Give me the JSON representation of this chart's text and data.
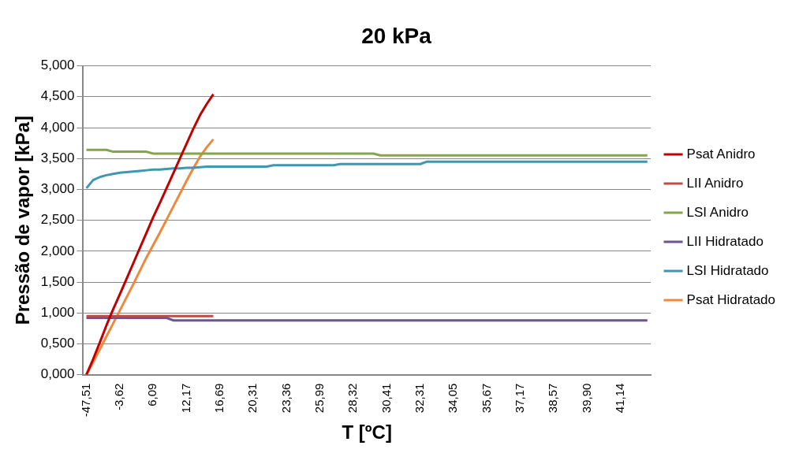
{
  "chart_data": {
    "type": "line",
    "title": "20 kPa",
    "xlabel": "T [ºC]",
    "ylabel": "Pressão de vapor [kPa]",
    "categories": [
      "-47,51",
      null,
      null,
      null,
      null,
      "-3,62",
      null,
      null,
      null,
      null,
      "6,09",
      null,
      null,
      null,
      null,
      "12,17",
      null,
      null,
      null,
      null,
      "16,69",
      null,
      null,
      null,
      null,
      "20,31",
      null,
      null,
      null,
      null,
      "23,36",
      null,
      null,
      null,
      null,
      "25,99",
      null,
      null,
      null,
      null,
      "28,32",
      null,
      null,
      null,
      null,
      "30,41",
      null,
      null,
      null,
      null,
      "32,31",
      null,
      null,
      null,
      null,
      "34,05",
      null,
      null,
      null,
      null,
      "35,67",
      null,
      null,
      null,
      null,
      "37,17",
      null,
      null,
      null,
      null,
      "38,57",
      null,
      null,
      null,
      null,
      "39,90",
      null,
      null,
      null,
      null,
      "41,14",
      null,
      null,
      null,
      null
    ],
    "ylim": [
      0,
      5
    ],
    "yticks": [
      {
        "value": 0,
        "label": "0,000"
      },
      {
        "value": 0.5,
        "label": "0,500"
      },
      {
        "value": 1,
        "label": "1,000"
      },
      {
        "value": 1.5,
        "label": "1,500"
      },
      {
        "value": 2,
        "label": "2,000"
      },
      {
        "value": 2.5,
        "label": "2,500"
      },
      {
        "value": 3,
        "label": "3,000"
      },
      {
        "value": 3.5,
        "label": "3,500"
      },
      {
        "value": 4,
        "label": "4,000"
      },
      {
        "value": 4.5,
        "label": "4,500"
      },
      {
        "value": 5,
        "label": "5,000"
      }
    ],
    "grid": "y",
    "legend": "right",
    "marker": "none",
    "line_style": "solid",
    "series": [
      {
        "name": "Psat Anidro",
        "color": "#c00000",
        "values": [
          0,
          0.25,
          0.52,
          0.8,
          1.06,
          1.3,
          1.55,
          1.8,
          2.05,
          2.3,
          2.55,
          2.78,
          3.02,
          3.26,
          3.5,
          3.74,
          3.98,
          4.2,
          4.38,
          4.54,
          null,
          null,
          null,
          null,
          null,
          null,
          null,
          null,
          null,
          null,
          null,
          null,
          null,
          null,
          null,
          null,
          null,
          null,
          null,
          null,
          null,
          null,
          null,
          null,
          null,
          null,
          null,
          null,
          null,
          null,
          null,
          null,
          null,
          null,
          null,
          null,
          null,
          null,
          null,
          null,
          null,
          null,
          null,
          null,
          null,
          null,
          null,
          null,
          null,
          null,
          null,
          null,
          null,
          null,
          null,
          null,
          null,
          null,
          null,
          null,
          null,
          null,
          null,
          null,
          null
        ]
      },
      {
        "name": "LII Anidro",
        "color": "#be4b48",
        "values": [
          0.95,
          0.95,
          0.95,
          0.95,
          0.95,
          0.95,
          0.95,
          0.95,
          0.95,
          0.95,
          0.95,
          0.95,
          0.95,
          0.95,
          0.95,
          0.95,
          0.95,
          0.95,
          0.95,
          0.95,
          null,
          null,
          null,
          null,
          null,
          null,
          null,
          null,
          null,
          null,
          null,
          null,
          null,
          null,
          null,
          null,
          null,
          null,
          null,
          null,
          null,
          null,
          null,
          null,
          null,
          null,
          null,
          null,
          null,
          null,
          null,
          null,
          null,
          null,
          null,
          null,
          null,
          null,
          null,
          null,
          null,
          null,
          null,
          null,
          null,
          null,
          null,
          null,
          null,
          null,
          null,
          null,
          null,
          null,
          null,
          null,
          null,
          null,
          null,
          null,
          null,
          null,
          null,
          null,
          null
        ]
      },
      {
        "name": "LSI Anidro",
        "color": "#86a44a",
        "values": [
          3.64,
          3.64,
          3.64,
          3.64,
          3.61,
          3.61,
          3.61,
          3.61,
          3.61,
          3.61,
          3.58,
          3.58,
          3.58,
          3.58,
          3.58,
          3.58,
          3.58,
          3.58,
          3.58,
          3.58,
          3.58,
          3.58,
          3.58,
          3.58,
          3.58,
          3.58,
          3.58,
          3.58,
          3.58,
          3.58,
          3.58,
          3.58,
          3.58,
          3.58,
          3.58,
          3.58,
          3.58,
          3.58,
          3.58,
          3.58,
          3.58,
          3.58,
          3.58,
          3.58,
          3.55,
          3.55,
          3.55,
          3.55,
          3.55,
          3.55,
          3.55,
          3.55,
          3.55,
          3.55,
          3.55,
          3.55,
          3.55,
          3.55,
          3.55,
          3.55,
          3.55,
          3.55,
          3.55,
          3.55,
          3.55,
          3.55,
          3.55,
          3.55,
          3.55,
          3.55,
          3.55,
          3.55,
          3.55,
          3.55,
          3.55,
          3.55,
          3.55,
          3.55,
          3.55,
          3.55,
          3.55,
          3.55,
          3.55,
          3.55,
          3.55
        ]
      },
      {
        "name": "LII Hidratado",
        "color": "#6d5391",
        "values": [
          0.92,
          0.92,
          0.92,
          0.92,
          0.92,
          0.92,
          0.92,
          0.92,
          0.92,
          0.92,
          0.92,
          0.92,
          0.92,
          0.88,
          0.88,
          0.88,
          0.88,
          0.88,
          0.88,
          0.88,
          0.88,
          0.88,
          0.88,
          0.88,
          0.88,
          0.88,
          0.88,
          0.88,
          0.88,
          0.88,
          0.88,
          0.88,
          0.88,
          0.88,
          0.88,
          0.88,
          0.88,
          0.88,
          0.88,
          0.88,
          0.88,
          0.88,
          0.88,
          0.88,
          0.88,
          0.88,
          0.88,
          0.88,
          0.88,
          0.88,
          0.88,
          0.88,
          0.88,
          0.88,
          0.88,
          0.88,
          0.88,
          0.88,
          0.88,
          0.88,
          0.88,
          0.88,
          0.88,
          0.88,
          0.88,
          0.88,
          0.88,
          0.88,
          0.88,
          0.88,
          0.88,
          0.88,
          0.88,
          0.88,
          0.88,
          0.88,
          0.88,
          0.88,
          0.88,
          0.88,
          0.88,
          0.88,
          0.88,
          0.88,
          0.88
        ]
      },
      {
        "name": "LSI Hidratado",
        "color": "#3f97b0",
        "values": [
          3.02,
          3.15,
          3.2,
          3.23,
          3.25,
          3.27,
          3.28,
          3.29,
          3.3,
          3.31,
          3.32,
          3.32,
          3.33,
          3.34,
          3.34,
          3.35,
          3.35,
          3.36,
          3.37,
          3.37,
          3.37,
          3.37,
          3.37,
          3.37,
          3.37,
          3.37,
          3.37,
          3.37,
          3.39,
          3.39,
          3.39,
          3.39,
          3.39,
          3.39,
          3.39,
          3.39,
          3.39,
          3.39,
          3.41,
          3.41,
          3.41,
          3.41,
          3.41,
          3.41,
          3.41,
          3.41,
          3.41,
          3.41,
          3.41,
          3.41,
          3.41,
          3.45,
          3.45,
          3.45,
          3.45,
          3.45,
          3.45,
          3.45,
          3.45,
          3.45,
          3.45,
          3.45,
          3.45,
          3.45,
          3.45,
          3.45,
          3.45,
          3.45,
          3.45,
          3.45,
          3.45,
          3.45,
          3.45,
          3.45,
          3.45,
          3.45,
          3.45,
          3.45,
          3.45,
          3.45,
          3.45,
          3.45,
          3.45,
          3.45,
          3.45
        ]
      },
      {
        "name": "Psat Hidratado",
        "color": "#f0883a",
        "values": [
          0,
          0.2,
          0.41,
          0.62,
          0.83,
          1.04,
          1.25,
          1.46,
          1.68,
          1.9,
          2.1,
          2.3,
          2.51,
          2.72,
          2.93,
          3.14,
          3.34,
          3.53,
          3.68,
          3.81,
          null,
          null,
          null,
          null,
          null,
          null,
          null,
          null,
          null,
          null,
          null,
          null,
          null,
          null,
          null,
          null,
          null,
          null,
          null,
          null,
          null,
          null,
          null,
          null,
          null,
          null,
          null,
          null,
          null,
          null,
          null,
          null,
          null,
          null,
          null,
          null,
          null,
          null,
          null,
          null,
          null,
          null,
          null,
          null,
          null,
          null,
          null,
          null,
          null,
          null,
          null,
          null,
          null,
          null,
          null,
          null,
          null,
          null,
          null,
          null,
          null,
          null,
          null,
          null,
          null
        ]
      }
    ]
  }
}
